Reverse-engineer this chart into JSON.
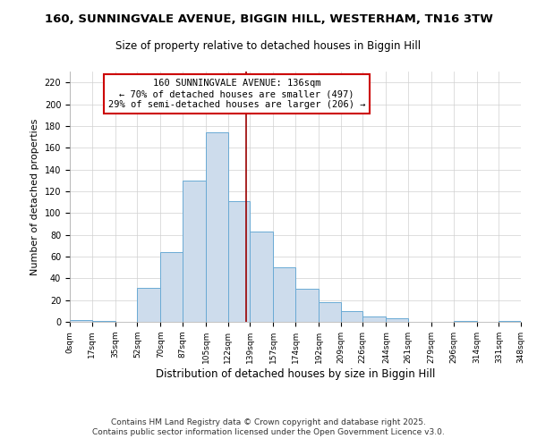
{
  "title": "160, SUNNINGVALE AVENUE, BIGGIN HILL, WESTERHAM, TN16 3TW",
  "subtitle": "Size of property relative to detached houses in Biggin Hill",
  "xlabel": "Distribution of detached houses by size in Biggin Hill",
  "ylabel": "Number of detached properties",
  "bar_color": "#cddcec",
  "bar_edge_color": "#6aaad4",
  "background_color": "#ffffff",
  "grid_color": "#d0d0d0",
  "vline_x": 136,
  "vline_color": "#990000",
  "annotation_line1": "160 SUNNINGVALE AVENUE: 136sqm",
  "annotation_line2": "← 70% of detached houses are smaller (497)",
  "annotation_line3": "29% of semi-detached houses are larger (206) →",
  "annotation_box_color": "#ffffff",
  "annotation_box_edge_color": "#cc0000",
  "bin_edges": [
    0,
    17,
    35,
    52,
    70,
    87,
    105,
    122,
    139,
    157,
    174,
    192,
    209,
    226,
    244,
    261,
    279,
    296,
    314,
    331,
    348
  ],
  "bar_heights": [
    2,
    1,
    0,
    31,
    64,
    130,
    174,
    111,
    83,
    50,
    30,
    18,
    10,
    5,
    3,
    0,
    0,
    1,
    0,
    1
  ],
  "tick_labels": [
    "0sqm",
    "17sqm",
    "35sqm",
    "52sqm",
    "70sqm",
    "87sqm",
    "105sqm",
    "122sqm",
    "139sqm",
    "157sqm",
    "174sqm",
    "192sqm",
    "209sqm",
    "226sqm",
    "244sqm",
    "261sqm",
    "279sqm",
    "296sqm",
    "314sqm",
    "331sqm",
    "348sqm"
  ],
  "ylim": [
    0,
    230
  ],
  "yticks": [
    0,
    20,
    40,
    60,
    80,
    100,
    120,
    140,
    160,
    180,
    200,
    220
  ],
  "footer_line1": "Contains HM Land Registry data © Crown copyright and database right 2025.",
  "footer_line2": "Contains public sector information licensed under the Open Government Licence v3.0.",
  "title_fontsize": 9.5,
  "subtitle_fontsize": 8.5,
  "annotation_fontsize": 7.5,
  "tick_fontsize": 6.5,
  "ylabel_fontsize": 8,
  "xlabel_fontsize": 8.5,
  "footer_fontsize": 6.5
}
